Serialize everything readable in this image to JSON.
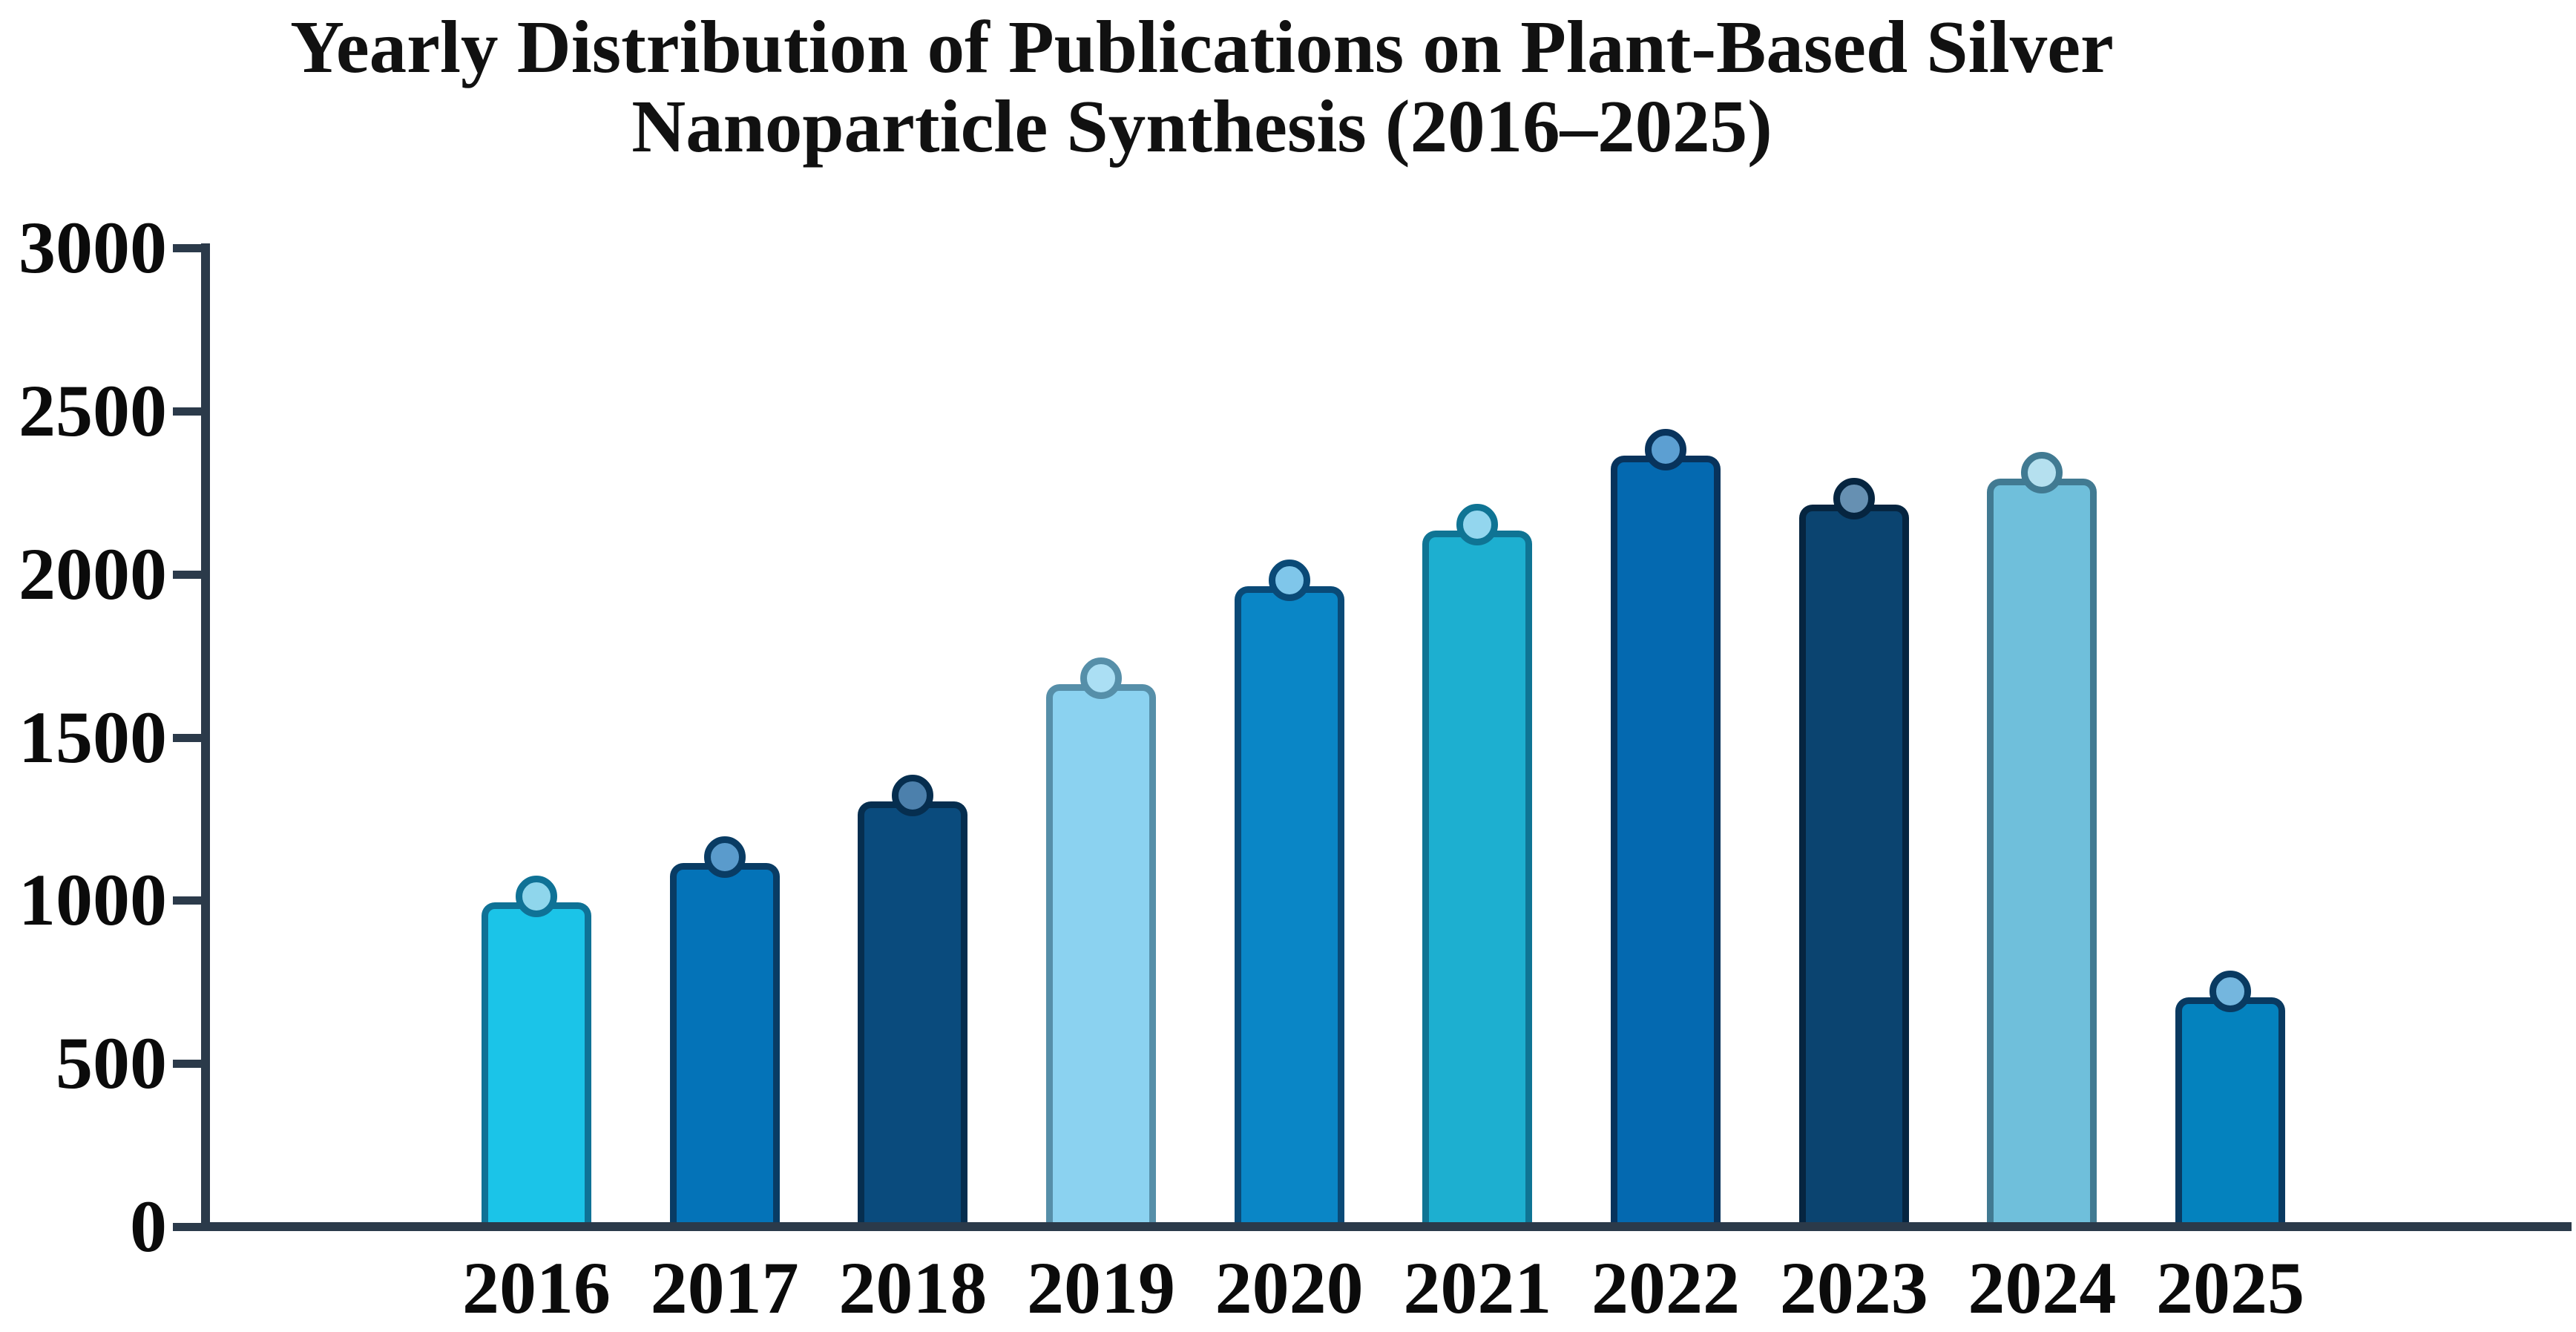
{
  "title": {
    "line1": "Yearly Distribution of Publications on Plant-Based Silver",
    "line2": "Nanoparticle Synthesis (2016–2025)"
  },
  "chart_data": {
    "type": "bar",
    "title": "Yearly Distribution of Publications on Plant-Based Silver Nanoparticle Synthesis (2016–2025)",
    "xlabel": "",
    "ylabel": "",
    "categories": [
      "2016",
      "2017",
      "2018",
      "2019",
      "2020",
      "2021",
      "2022",
      "2023",
      "2024",
      "2025"
    ],
    "values": [
      980,
      1100,
      1290,
      1650,
      1950,
      2120,
      2350,
      2200,
      2280,
      690
    ],
    "ylim": [
      0,
      3000
    ],
    "yticks": [
      0,
      500,
      1000,
      1500,
      2000,
      2500,
      3000
    ],
    "grid": false,
    "legend": false,
    "marker": "circle-at-bar-top",
    "axis_color": "#2B3A4A",
    "text_color": "#0b0b0b",
    "bar_fill_colors": [
      "#1BC4E8",
      "#0473B8",
      "#0A4B7D",
      "#8BD2F0",
      "#0A86C6",
      "#1DAFD0",
      "#0469B0",
      "#0B4470",
      "#6FBFDB",
      "#0482BE"
    ],
    "bar_edge_colors": [
      "#0F7296",
      "#093C64",
      "#062E4F",
      "#568FA9",
      "#0A4A77",
      "#0F7494",
      "#08335C",
      "#062540",
      "#417A92",
      "#093A61"
    ],
    "marker_fill_colors": [
      "#8FD6EC",
      "#5A9BCC",
      "#4C80AC",
      "#ABDFF4",
      "#7FC6EA",
      "#93D6EE",
      "#5C9FD2",
      "#6690B2",
      "#B5E0EF",
      "#74B6DE"
    ]
  }
}
